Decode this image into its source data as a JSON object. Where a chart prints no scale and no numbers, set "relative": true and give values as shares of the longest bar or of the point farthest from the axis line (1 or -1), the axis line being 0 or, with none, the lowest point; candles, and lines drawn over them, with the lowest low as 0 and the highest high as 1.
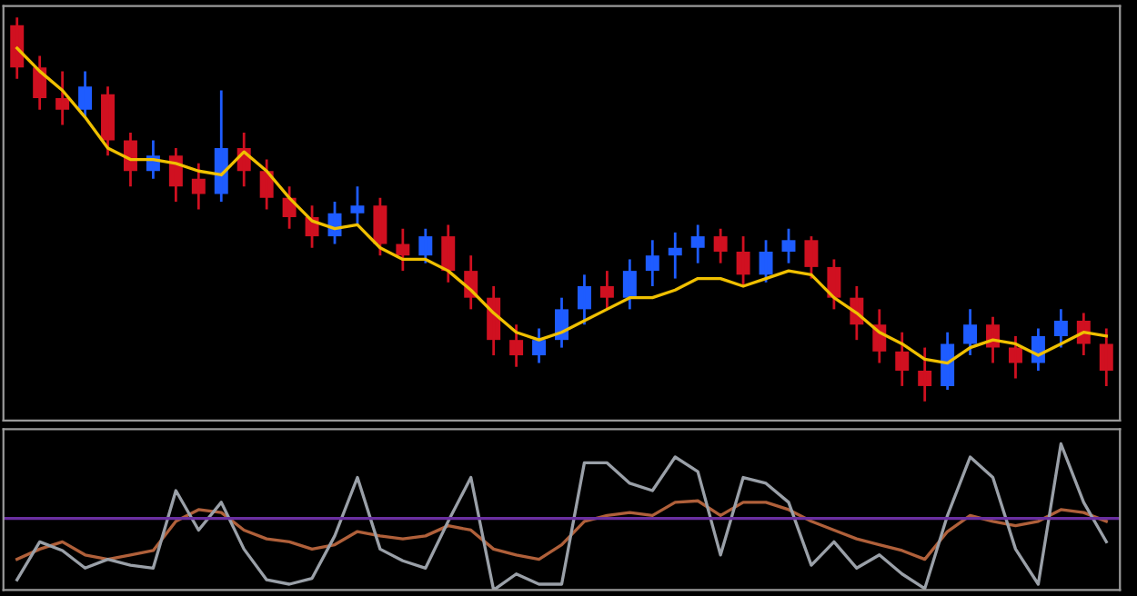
{
  "chart_data": [
    {
      "type": "candlestick",
      "relative": true,
      "categories": [
        null,
        null,
        null,
        null,
        null,
        null,
        null,
        null,
        null,
        null,
        null,
        null,
        null,
        null,
        null,
        null,
        null,
        null,
        null,
        null,
        null,
        null,
        null,
        null,
        null,
        null,
        null,
        null,
        null,
        null,
        null,
        null,
        null,
        null,
        null,
        null,
        null,
        null,
        null,
        null,
        null,
        null,
        null,
        null,
        null,
        null,
        null,
        null,
        null
      ],
      "ohlc": [
        [
          0.98,
          1.0,
          0.84,
          0.87
        ],
        [
          0.87,
          0.9,
          0.76,
          0.79
        ],
        [
          0.79,
          0.86,
          0.72,
          0.76
        ],
        [
          0.76,
          0.86,
          0.74,
          0.82
        ],
        [
          0.8,
          0.82,
          0.64,
          0.68
        ],
        [
          0.68,
          0.7,
          0.56,
          0.6
        ],
        [
          0.6,
          0.68,
          0.58,
          0.64
        ],
        [
          0.64,
          0.66,
          0.52,
          0.56
        ],
        [
          0.58,
          0.62,
          0.5,
          0.54
        ],
        [
          0.54,
          0.81,
          0.52,
          0.66
        ],
        [
          0.66,
          0.7,
          0.56,
          0.6
        ],
        [
          0.6,
          0.63,
          0.5,
          0.53
        ],
        [
          0.53,
          0.56,
          0.45,
          0.48
        ],
        [
          0.48,
          0.51,
          0.4,
          0.43
        ],
        [
          0.43,
          0.52,
          0.41,
          0.49
        ],
        [
          0.49,
          0.56,
          0.46,
          0.51
        ],
        [
          0.51,
          0.53,
          0.38,
          0.41
        ],
        [
          0.41,
          0.45,
          0.34,
          0.38
        ],
        [
          0.38,
          0.45,
          0.36,
          0.43
        ],
        [
          0.43,
          0.46,
          0.31,
          0.34
        ],
        [
          0.34,
          0.38,
          0.24,
          0.27
        ],
        [
          0.27,
          0.3,
          0.12,
          0.16
        ],
        [
          0.16,
          0.2,
          0.09,
          0.12
        ],
        [
          0.12,
          0.19,
          0.1,
          0.16
        ],
        [
          0.16,
          0.27,
          0.14,
          0.24
        ],
        [
          0.24,
          0.33,
          0.2,
          0.3
        ],
        [
          0.3,
          0.34,
          0.24,
          0.27
        ],
        [
          0.27,
          0.37,
          0.24,
          0.34
        ],
        [
          0.34,
          0.42,
          0.3,
          0.38
        ],
        [
          0.38,
          0.44,
          0.32,
          0.4
        ],
        [
          0.4,
          0.46,
          0.36,
          0.43
        ],
        [
          0.43,
          0.45,
          0.36,
          0.39
        ],
        [
          0.39,
          0.43,
          0.3,
          0.33
        ],
        [
          0.33,
          0.42,
          0.31,
          0.39
        ],
        [
          0.39,
          0.45,
          0.36,
          0.42
        ],
        [
          0.42,
          0.43,
          0.32,
          0.35
        ],
        [
          0.35,
          0.37,
          0.24,
          0.27
        ],
        [
          0.27,
          0.3,
          0.16,
          0.2
        ],
        [
          0.2,
          0.24,
          0.1,
          0.13
        ],
        [
          0.13,
          0.18,
          0.04,
          0.08
        ],
        [
          0.08,
          0.14,
          0.0,
          0.04
        ],
        [
          0.04,
          0.18,
          0.03,
          0.15
        ],
        [
          0.15,
          0.24,
          0.12,
          0.2
        ],
        [
          0.2,
          0.22,
          0.1,
          0.14
        ],
        [
          0.14,
          0.17,
          0.06,
          0.1
        ],
        [
          0.1,
          0.19,
          0.08,
          0.17
        ],
        [
          0.17,
          0.24,
          0.14,
          0.21
        ],
        [
          0.21,
          0.23,
          0.12,
          0.15
        ],
        [
          0.15,
          0.19,
          0.04,
          0.08
        ]
      ],
      "colors": [
        "#d01020",
        "#d01020",
        "#d01020",
        "#1e5cff",
        "#d01020",
        "#d01020",
        "#1e5cff",
        "#d01020",
        "#d01020",
        "#1e5cff",
        "#d01020",
        "#d01020",
        "#d01020",
        "#d01020",
        "#1e5cff",
        "#1e5cff",
        "#d01020",
        "#d01020",
        "#1e5cff",
        "#d01020",
        "#d01020",
        "#d01020",
        "#d01020",
        "#1e5cff",
        "#1e5cff",
        "#1e5cff",
        "#d01020",
        "#1e5cff",
        "#1e5cff",
        "#1e5cff",
        "#1e5cff",
        "#d01020",
        "#d01020",
        "#1e5cff",
        "#1e5cff",
        "#d01020",
        "#d01020",
        "#d01020",
        "#d01020",
        "#d01020",
        "#d01020",
        "#1e5cff",
        "#1e5cff",
        "#d01020",
        "#d01020",
        "#1e5cff",
        "#1e5cff",
        "#d01020",
        "#d01020"
      ],
      "series": [
        {
          "type": "line",
          "color": "#f0c000",
          "values": [
            0.92,
            0.86,
            0.81,
            0.74,
            0.66,
            0.63,
            0.63,
            0.62,
            0.6,
            0.59,
            0.65,
            0.6,
            0.53,
            0.47,
            0.45,
            0.46,
            0.4,
            0.37,
            0.37,
            0.34,
            0.29,
            0.23,
            0.18,
            0.16,
            0.18,
            0.21,
            0.24,
            0.27,
            0.27,
            0.29,
            0.32,
            0.32,
            0.3,
            0.32,
            0.34,
            0.33,
            0.27,
            0.23,
            0.18,
            0.15,
            0.11,
            0.1,
            0.14,
            0.16,
            0.15,
            0.12,
            0.15,
            0.18,
            0.17
          ]
        }
      ]
    },
    {
      "type": "line",
      "relative": true,
      "categories": [
        null,
        null,
        null,
        null,
        null,
        null,
        null,
        null,
        null,
        null,
        null,
        null,
        null,
        null,
        null,
        null,
        null,
        null,
        null,
        null,
        null,
        null,
        null,
        null,
        null,
        null,
        null,
        null,
        null,
        null,
        null,
        null,
        null,
        null,
        null,
        null,
        null,
        null,
        null,
        null,
        null,
        null,
        null,
        null,
        null,
        null,
        null,
        null,
        null
      ],
      "series": [
        {
          "color": "#b0603a",
          "values": [
            0.21,
            0.28,
            0.33,
            0.24,
            0.21,
            0.24,
            0.27,
            0.47,
            0.55,
            0.53,
            0.41,
            0.35,
            0.33,
            0.28,
            0.31,
            0.4,
            0.37,
            0.35,
            0.37,
            0.44,
            0.41,
            0.28,
            0.24,
            0.21,
            0.31,
            0.47,
            0.51,
            0.53,
            0.51,
            0.6,
            0.61,
            0.51,
            0.6,
            0.6,
            0.55,
            0.47,
            0.41,
            0.35,
            0.31,
            0.27,
            0.21,
            0.4,
            0.51,
            0.47,
            0.44,
            0.47,
            0.55,
            0.53,
            0.47
          ]
        },
        {
          "color": "#9aa0a8",
          "values": [
            0.07,
            0.33,
            0.27,
            0.15,
            0.21,
            0.17,
            0.15,
            0.68,
            0.41,
            0.6,
            0.28,
            0.07,
            0.04,
            0.08,
            0.37,
            0.77,
            0.28,
            0.2,
            0.15,
            0.47,
            0.77,
            0.0,
            0.11,
            0.04,
            0.04,
            0.87,
            0.87,
            0.73,
            0.68,
            0.91,
            0.81,
            0.24,
            0.77,
            0.73,
            0.6,
            0.17,
            0.33,
            0.15,
            0.24,
            0.11,
            0.01,
            0.51,
            0.91,
            0.77,
            0.28,
            0.04,
            1.0,
            0.6,
            0.33
          ]
        }
      ],
      "ref_lines": [
        {
          "axis": "y",
          "value": 0.49,
          "color": "#6a2fa0",
          "line_style": "solid"
        }
      ]
    }
  ]
}
